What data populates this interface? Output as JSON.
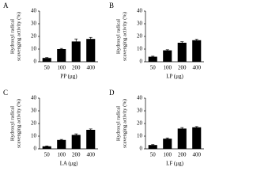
{
  "chart_data": [
    {
      "type": "bar",
      "panel": "A",
      "xlabel": "PP (μg)",
      "ylabel": [
        "Hydroxyl radical",
        "scavenging activity (%)"
      ],
      "categories": [
        "50",
        "100",
        "200",
        "400"
      ],
      "values": [
        3,
        10,
        16,
        18
      ],
      "errors": [
        0.3,
        0.5,
        2,
        1.2
      ],
      "color": "#000000",
      "ylim": [
        0,
        40
      ],
      "yticks": [
        0,
        10,
        20,
        30,
        40
      ]
    },
    {
      "type": "bar",
      "panel": "B",
      "xlabel": "LP (μg)",
      "ylabel": [
        "Hydroxyl radical",
        "scavenging activity (%)"
      ],
      "categories": [
        "50",
        "100",
        "200",
        "400"
      ],
      "values": [
        4,
        9,
        15,
        17
      ],
      "errors": [
        0.4,
        0.5,
        0.8,
        0.7
      ],
      "color": "#000000",
      "ylim": [
        0,
        40
      ],
      "yticks": [
        0,
        10,
        20,
        30,
        40
      ]
    },
    {
      "type": "bar",
      "panel": "C",
      "xlabel": "LA (μg)",
      "ylabel": [
        "Hydroxyl radical",
        "scavenging activity (%)"
      ],
      "categories": [
        "50",
        "100",
        "200",
        "400"
      ],
      "values": [
        2,
        7,
        11,
        15
      ],
      "errors": [
        0.3,
        0.4,
        0.8,
        0.7
      ],
      "color": "#000000",
      "ylim": [
        0,
        40
      ],
      "yticks": [
        0,
        10,
        20,
        30,
        40
      ]
    },
    {
      "type": "bar",
      "panel": "D",
      "xlabel": "LF (μg)",
      "ylabel": [
        "Hydroxyl radical",
        "scavenging activity (%)"
      ],
      "categories": [
        "50",
        "100",
        "200",
        "400"
      ],
      "values": [
        3,
        8,
        16,
        17
      ],
      "errors": [
        0.3,
        0.6,
        0.8,
        0.6
      ],
      "color": "#000000",
      "ylim": [
        0,
        40
      ],
      "yticks": [
        0,
        10,
        20,
        30,
        40
      ]
    }
  ]
}
